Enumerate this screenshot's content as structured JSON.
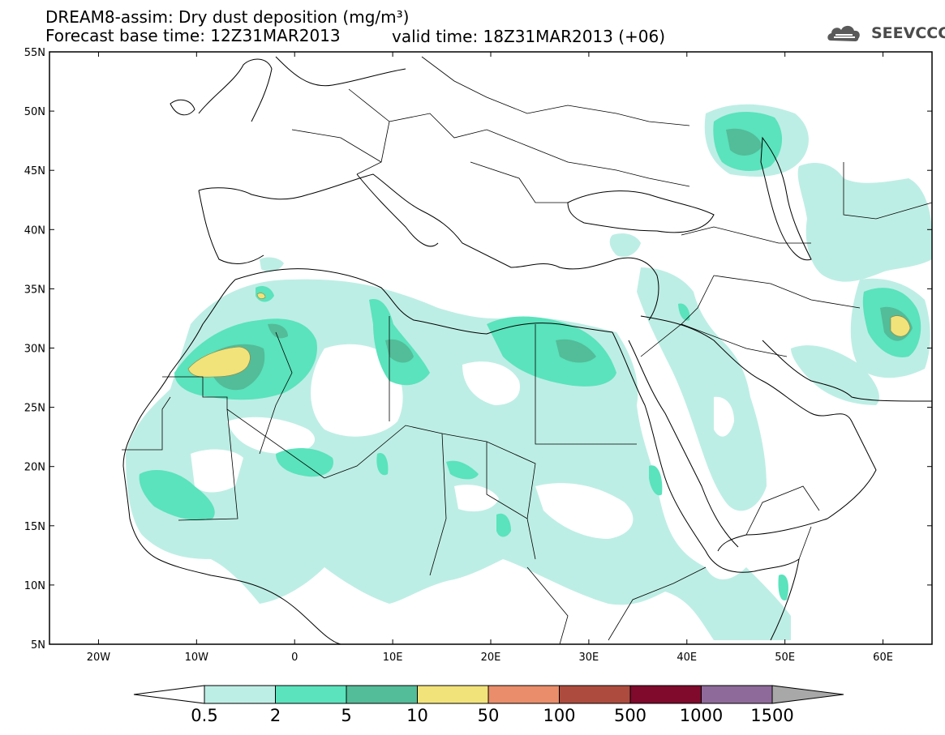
{
  "title": {
    "line1": "DREAM8-assim: Dry dust deposition (mg/m³)",
    "line2": "Forecast base time: 12Z31MAR2013",
    "valid": "valid time: 18Z31MAR2013 (+06)"
  },
  "logo": {
    "text": "SEEVCCC",
    "icon": "cloud-icon"
  },
  "map": {
    "projection": "lat-lon",
    "lon_range": [
      -25,
      65
    ],
    "lat_range": [
      5,
      55
    ],
    "lon_ticks": [
      {
        "value": -20,
        "label": "20W"
      },
      {
        "value": -10,
        "label": "10W"
      },
      {
        "value": 0,
        "label": "0"
      },
      {
        "value": 10,
        "label": "10E"
      },
      {
        "value": 20,
        "label": "20E"
      },
      {
        "value": 30,
        "label": "30E"
      },
      {
        "value": 40,
        "label": "40E"
      },
      {
        "value": 50,
        "label": "50E"
      },
      {
        "value": 60,
        "label": "60E"
      }
    ],
    "lat_ticks": [
      {
        "value": 55,
        "label": "55N"
      },
      {
        "value": 50,
        "label": "50N"
      },
      {
        "value": 45,
        "label": "45N"
      },
      {
        "value": 40,
        "label": "40N"
      },
      {
        "value": 35,
        "label": "35N"
      },
      {
        "value": 30,
        "label": "30N"
      },
      {
        "value": 25,
        "label": "25N"
      },
      {
        "value": 20,
        "label": "20N"
      },
      {
        "value": 15,
        "label": "15N"
      },
      {
        "value": 10,
        "label": "10N"
      },
      {
        "value": 5,
        "label": "5N"
      }
    ]
  },
  "colorbar": {
    "levels": [
      "0.5",
      "2",
      "5",
      "10",
      "50",
      "100",
      "500",
      "1000",
      "1500"
    ],
    "colors": [
      "#bdeee5",
      "#5ae3bc",
      "#53bc98",
      "#f2e27a",
      "#e98d6a",
      "#ad4c3e",
      "#7f0a2c",
      "#8e6a9a"
    ],
    "under_color": "#ffffff",
    "over_color": "#a8a8a8"
  },
  "colors": {
    "level1": "#bdeee5",
    "level2": "#5ae3bc",
    "level3": "#53bc98",
    "level4": "#f2e27a"
  }
}
